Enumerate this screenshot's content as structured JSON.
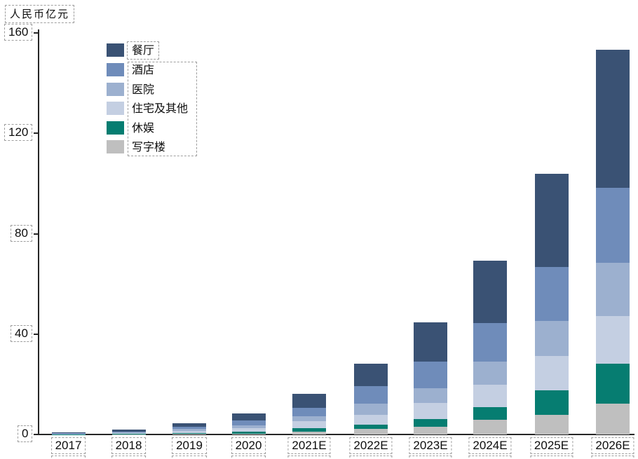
{
  "title": {
    "unit_label": "人民币亿元"
  },
  "y_axis": {
    "tick_labels": [
      "0",
      "40",
      "80",
      "120",
      "160"
    ]
  },
  "x_axis": {
    "categories": [
      "2017",
      "2018",
      "2019",
      "2020",
      "2021E",
      "2022E",
      "2023E",
      "2024E",
      "2025E",
      "2026E"
    ]
  },
  "legend": {
    "items": [
      {
        "label": "餐厅",
        "color": "#3a5274"
      },
      {
        "label": "酒店",
        "color": "#6f8cba"
      },
      {
        "label": "医院",
        "color": "#9cb0cf"
      },
      {
        "label": "住宅及其他",
        "color": "#c4cfe2"
      },
      {
        "label": "休娱",
        "color": "#067d71"
      },
      {
        "label": "写字楼",
        "color": "#bfbfbf"
      }
    ]
  },
  "chart_data": {
    "type": "bar",
    "stacked": true,
    "title": "",
    "ylabel": "人民币亿元",
    "xlabel": "",
    "categories": [
      "2017",
      "2018",
      "2019",
      "2020",
      "2021E",
      "2022E",
      "2023E",
      "2024E",
      "2025E",
      "2026E"
    ],
    "series": [
      {
        "name": "餐厅",
        "color": "#3a5274",
        "values": [
          0.3,
          0.7,
          1.4,
          2.8,
          5.6,
          8.9,
          15.6,
          24.7,
          37.2,
          54.9
        ]
      },
      {
        "name": "酒店",
        "color": "#6f8cba",
        "values": [
          0.2,
          0.45,
          0.9,
          1.9,
          3.2,
          6.9,
          10.7,
          15.4,
          21.7,
          29.9
        ]
      },
      {
        "name": "医院",
        "color": "#9cb0cf",
        "values": [
          0.15,
          0.3,
          0.8,
          1.3,
          1.9,
          4.7,
          5.8,
          9.3,
          13.9,
          21.3
        ]
      },
      {
        "name": "住宅及其他",
        "color": "#c4cfe2",
        "values": [
          0.1,
          0.25,
          0.7,
          1.2,
          3.0,
          3.7,
          6.5,
          8.8,
          13.7,
          19.0
        ]
      },
      {
        "name": "休娱",
        "color": "#067d71",
        "values": [
          0.03,
          0.1,
          0.3,
          0.9,
          1.2,
          1.9,
          3.0,
          5.1,
          9.6,
          15.8
        ]
      },
      {
        "name": "写字楼",
        "color": "#bfbfbf",
        "values": [
          0.02,
          0.1,
          0.3,
          0.3,
          1.2,
          2.1,
          3.1,
          5.9,
          7.9,
          12.4
        ]
      }
    ],
    "totals": [
      0.8,
      1.9,
      4.4,
      8.4,
      16.1,
      28.2,
      44.7,
      69.2,
      104.0,
      153.3
    ],
    "ylim": [
      0,
      160
    ],
    "yticks": [
      0,
      40,
      80,
      120,
      160
    ],
    "grid": false,
    "legend_position": "upper-left",
    "stack_order_bottom_to_top": [
      "写字楼",
      "休娱",
      "住宅及其他",
      "医院",
      "酒店",
      "餐厅"
    ],
    "annotation_style": "dashed boxes around every text label"
  }
}
